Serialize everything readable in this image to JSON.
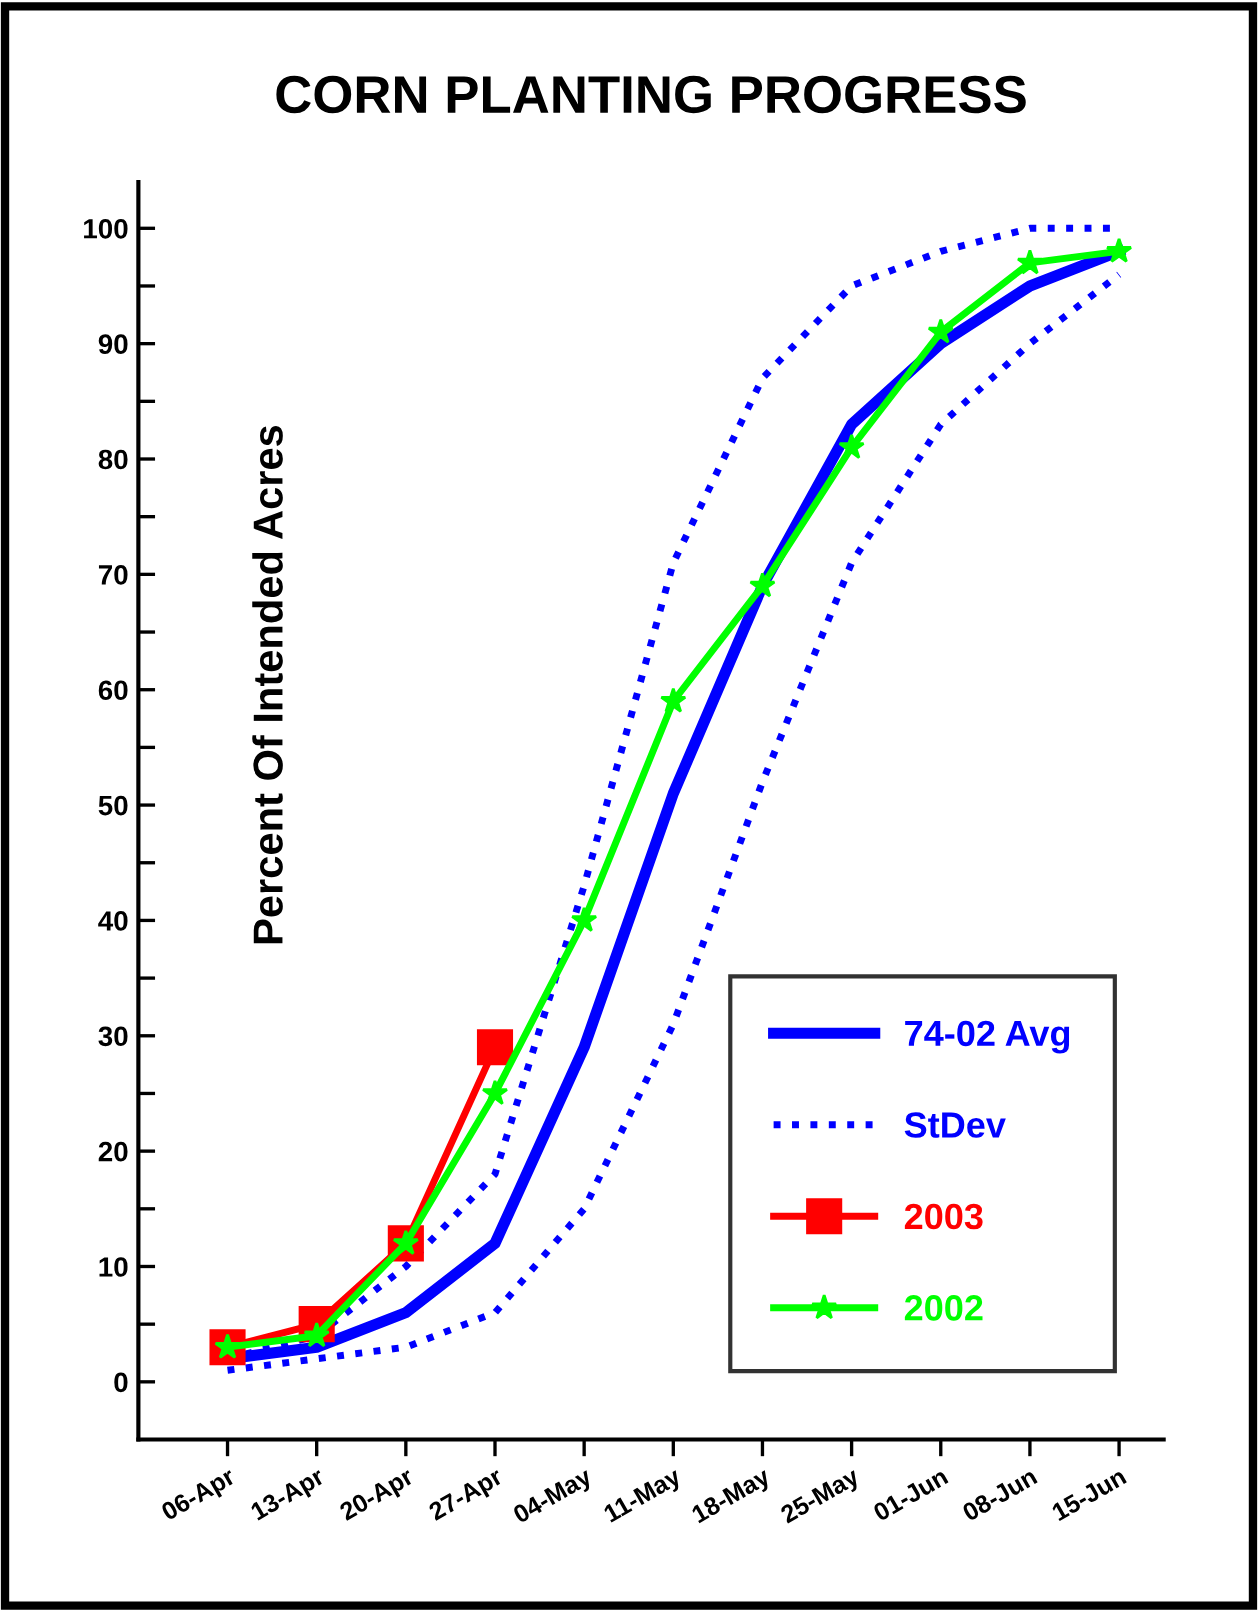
{
  "chart_data": {
    "type": "line",
    "title": "CORN PLANTING PROGRESS",
    "ylabel": "Percent Of Intended Acres",
    "categories": [
      "06-Apr",
      "13-Apr",
      "20-Apr",
      "27-Apr",
      "04-May",
      "11-May",
      "18-May",
      "25-May",
      "01-Jun",
      "08-Jun",
      "15-Jun"
    ],
    "series": [
      {
        "name": "74-02 Avg",
        "color": "#0000ff",
        "line_style": "solid",
        "marker": "none",
        "values": [
          2,
          3,
          6,
          12,
          29,
          51,
          69,
          83,
          90,
          95,
          98
        ]
      },
      {
        "name": "StDev",
        "color": "#0000ff",
        "line_style": "dotted",
        "marker": "none",
        "values": [
          2,
          4,
          10,
          18,
          43,
          71,
          87,
          95,
          98,
          100,
          100
        ]
      },
      {
        "color": "#0000ff",
        "line_style": "dotted",
        "marker": "none",
        "values": [
          1,
          2,
          3,
          6,
          15,
          31,
          52,
          71,
          83,
          90,
          96
        ]
      },
      {
        "name": "2003",
        "color": "#ff0000",
        "line_style": "solid",
        "marker": "square",
        "values": [
          3,
          5,
          12,
          29,
          null,
          null,
          null,
          null,
          null,
          null,
          null
        ]
      },
      {
        "name": "2002",
        "color": "#00ff00",
        "line_style": "solid",
        "marker": "star",
        "values": [
          3,
          4,
          12,
          25,
          40,
          59,
          69,
          81,
          91,
          97,
          98
        ]
      }
    ],
    "ylim": [
      -5,
      104
    ],
    "yticks": [
      0,
      {
        "value": 5,
        "label": null
      },
      10,
      {
        "value": 15,
        "label": null
      },
      20,
      {
        "value": 25,
        "label": null
      },
      30,
      {
        "value": 35,
        "label": null
      },
      40,
      {
        "value": 45,
        "label": null
      },
      50,
      {
        "value": 55,
        "label": null
      },
      60,
      {
        "value": 65,
        "label": null
      },
      70,
      {
        "value": 75,
        "label": null
      },
      80,
      {
        "value": 85,
        "label": null
      },
      90,
      {
        "value": 95,
        "label": null
      },
      100
    ],
    "grid": false,
    "legend": "bottom right"
  }
}
